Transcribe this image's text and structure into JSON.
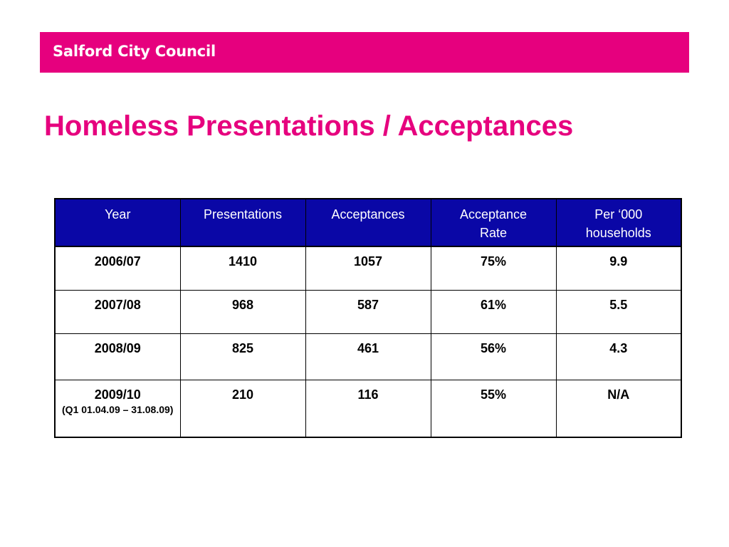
{
  "header": {
    "brand": "Salford City Council",
    "brand_color": "#e6007e"
  },
  "page": {
    "title": "Homeless Presentations / Acceptances"
  },
  "table": {
    "header_color": "#0a07a6",
    "columns": [
      {
        "line1": "Year",
        "line2": ""
      },
      {
        "line1": "Presentations",
        "line2": ""
      },
      {
        "line1": "Acceptances",
        "line2": ""
      },
      {
        "line1": "Acceptance",
        "line2": "Rate"
      },
      {
        "line1": "Per ‘000",
        "line2": "households"
      }
    ],
    "rows": [
      {
        "year": "2006/07",
        "year_note": "",
        "presentations": "1410",
        "acceptances": "1057",
        "rate": "75%",
        "per_000": "9.9"
      },
      {
        "year": "2007/08",
        "year_note": "",
        "presentations": "968",
        "acceptances": "587",
        "rate": "61%",
        "per_000": "5.5"
      },
      {
        "year": "2008/09",
        "year_note": "",
        "presentations": "825",
        "acceptances": "461",
        "rate": "56%",
        "per_000": "4.3"
      },
      {
        "year": "2009/10",
        "year_note": "(Q1 01.04.09 – 31.08.09)",
        "presentations": "210",
        "acceptances": "116",
        "rate": "55%",
        "per_000": "N/A"
      }
    ]
  }
}
